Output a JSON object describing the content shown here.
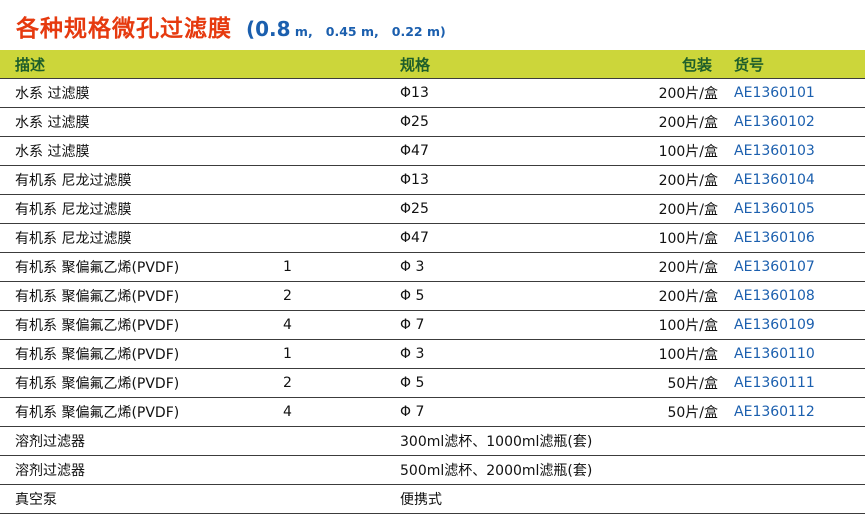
{
  "title": {
    "main": "各种规格微孔过滤膜",
    "paren_big": "(0.8",
    "paren_small": " m,   0.45 m,   0.22 m)"
  },
  "table": {
    "headers": {
      "desc": "描述",
      "spec": "规格",
      "pack": "包装",
      "cat": "货号"
    },
    "rows": [
      {
        "desc": "水系 过滤膜",
        "sub": "",
        "spec": "Φ13",
        "pack": "200片/盒",
        "cat": "AE1360101"
      },
      {
        "desc": "水系 过滤膜",
        "sub": "",
        "spec": "Φ25",
        "pack": "200片/盒",
        "cat": "AE1360102"
      },
      {
        "desc": "水系 过滤膜",
        "sub": "",
        "spec": "Φ47",
        "pack": "100片/盒",
        "cat": "AE1360103"
      },
      {
        "desc": "有机系 尼龙过滤膜",
        "sub": "",
        "spec": "Φ13",
        "pack": "200片/盒",
        "cat": "AE1360104"
      },
      {
        "desc": "有机系 尼龙过滤膜",
        "sub": "",
        "spec": "Φ25",
        "pack": "200片/盒",
        "cat": "AE1360105"
      },
      {
        "desc": "有机系 尼龙过滤膜",
        "sub": "",
        "spec": "Φ47",
        "pack": "100片/盒",
        "cat": "AE1360106"
      },
      {
        "desc": "有机系 聚偏氟乙烯(PVDF)",
        "sub": "1",
        "spec": "Φ 3",
        "pack": "200片/盒",
        "cat": "AE1360107"
      },
      {
        "desc": "有机系 聚偏氟乙烯(PVDF)",
        "sub": "2",
        "spec": "Φ 5",
        "pack": "200片/盒",
        "cat": "AE1360108"
      },
      {
        "desc": "有机系 聚偏氟乙烯(PVDF)",
        "sub": "4",
        "spec": "Φ 7",
        "pack": "100片/盒",
        "cat": "AE1360109"
      },
      {
        "desc": "有机系 聚偏氟乙烯(PVDF)",
        "sub": "1",
        "spec": "Φ 3",
        "pack": "100片/盒",
        "cat": "AE1360110"
      },
      {
        "desc": "有机系 聚偏氟乙烯(PVDF)",
        "sub": "2",
        "spec": "Φ 5",
        "pack": "50片/盒",
        "cat": "AE1360111"
      },
      {
        "desc": "有机系 聚偏氟乙烯(PVDF)",
        "sub": "4",
        "spec": "Φ 7",
        "pack": "50片/盒",
        "cat": "AE1360112"
      },
      {
        "desc": "溶剂过滤器",
        "sub": "",
        "spec": "300ml滤杯、1000ml滤瓶(套)",
        "pack": "",
        "cat": ""
      },
      {
        "desc": "溶剂过滤器",
        "sub": "",
        "spec": "500ml滤杯、2000ml滤瓶(套)",
        "pack": "",
        "cat": ""
      },
      {
        "desc": "真空泵",
        "sub": "",
        "spec": "便携式",
        "pack": "",
        "cat": ""
      }
    ]
  },
  "colors": {
    "title_red": "#e63a0f",
    "title_blue": "#1b5fae",
    "header_bg": "#ccd63a",
    "header_text": "#1e5e2a",
    "catalog_blue": "#1b5fae",
    "bottom_line": "#a3b93c"
  }
}
